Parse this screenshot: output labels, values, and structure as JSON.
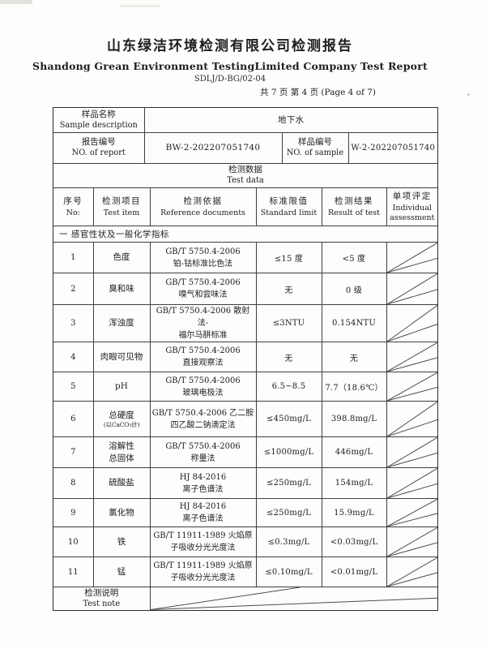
{
  "header": {
    "title_cn": "山东绿洁环境检测有限公司检测报告",
    "title_en": "Shandong Grean Environment TestingLimited Company Test Report",
    "doc_code": "SDLJ/D-BG/02-04",
    "page_indicator": "共 7 页  第 4 页  (Page 4 of 7)"
  },
  "sample_info": {
    "sample_label_cn": "样品名称",
    "sample_label_en": "Sample description",
    "sample_value": "地下水",
    "report_label_cn": "报告编号",
    "report_label_en": "NO. of report",
    "report_value": "BW-2-202207051740",
    "sample_no_label_cn": "样品编号",
    "sample_no_label_en": "NO. of sample",
    "sample_no_value": "W-2-202207051740",
    "test_data_label_cn": "检测数据",
    "test_data_label_en": "Test data"
  },
  "table": {
    "headers": [
      {
        "cn": "序号",
        "en": "No:"
      },
      {
        "cn": "检测项目",
        "en": "Test item"
      },
      {
        "cn": "检测依据",
        "en": "Reference documents"
      },
      {
        "cn": "标准限值",
        "en": "Standard limit"
      },
      {
        "cn": "检测结果",
        "en": "Result of test"
      },
      {
        "cn": "单项评定",
        "en": "Individual assessment"
      }
    ],
    "section_title": "一  感官性状及一般化学指标",
    "rows": [
      {
        "no": "1",
        "item": "色度",
        "item_sub": "",
        "method": "GB/T 5750.4-2006\n铂-钴标准比色法",
        "limit": "≤15 度",
        "result": "<5 度"
      },
      {
        "no": "2",
        "item": "臭和味",
        "item_sub": "",
        "method": "GB/T 5750.4-2006\n嗅气和尝味法",
        "limit": "无",
        "result": "0 级"
      },
      {
        "no": "3",
        "item": "浑浊度",
        "item_sub": "",
        "method": "GB/T 5750.4-2006 散射法-\n福尔马肼标准",
        "limit": "≤3NTU",
        "result": "0.154NTU"
      },
      {
        "no": "4",
        "item": "肉眼可见物",
        "item_sub": "",
        "method": "GB/T 5750.4-2006\n直接观察法",
        "limit": "无",
        "result": "无"
      },
      {
        "no": "5",
        "item": "pH",
        "item_sub": "",
        "method": "GB/T 5750.4-2006\n玻璃电极法",
        "limit": "6.5~8.5",
        "result": "7.7（18.6℃）"
      },
      {
        "no": "6",
        "item": "总硬度",
        "item_sub": "(以CaCO₃计)",
        "method": "GB/T 5750.4-2006 乙二胺\n四乙酸二钠滴定法",
        "limit": "≤450mg/L",
        "result": "398.8mg/L"
      },
      {
        "no": "7",
        "item": "溶解性\n总固体",
        "item_sub": "",
        "method": "GB/T 5750.4-2006\n称量法",
        "limit": "≤1000mg/L",
        "result": "446mg/L"
      },
      {
        "no": "8",
        "item": "硫酸盐",
        "item_sub": "",
        "method": "HJ 84-2016\n离子色谱法",
        "limit": "≤250mg/L",
        "result": "154mg/L"
      },
      {
        "no": "9",
        "item": "氯化物",
        "item_sub": "",
        "method": "HJ 84-2016\n离子色谱法",
        "limit": "≤250mg/L",
        "result": "15.9mg/L"
      },
      {
        "no": "10",
        "item": "铁",
        "item_sub": "",
        "method": "GB/T 11911-1989 火焰原\n子吸收分光光度法",
        "limit": "≤0.3mg/L",
        "result": "<0.03mg/L"
      },
      {
        "no": "11",
        "item": "锰",
        "item_sub": "",
        "method": "GB/T 11911-1989 火焰原\n子吸收分光光度法",
        "limit": "≤0.10mg/L",
        "result": "<0.01mg/L"
      }
    ],
    "note_label_cn": "检测说明",
    "note_label_en": "Test note"
  }
}
